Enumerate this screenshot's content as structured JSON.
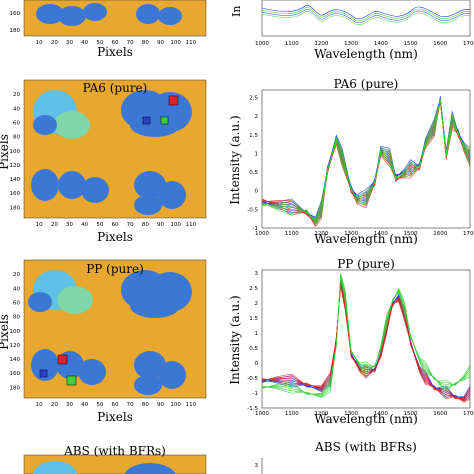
{
  "colors": {
    "map_background": "#e8a830",
    "map_blob": "#3b78d6",
    "map_blob_light": "#5fc0e8",
    "map_blob_green": "#7fd6a8",
    "marker_red": "#e0202a",
    "marker_blue": "#2a3fd0",
    "marker_green": "#40d040",
    "spectrum_red": "#e02020",
    "spectrum_blue": "#2030e0",
    "spectrum_green": "#30d030"
  },
  "map_axis": {
    "xlabel": "Pixels",
    "ylabel": "Pixels",
    "x_ticks": [
      "10",
      "20",
      "30",
      "40",
      "50",
      "60",
      "70",
      "80",
      "90",
      "100",
      "110"
    ],
    "y_ticks": [
      "20",
      "40",
      "60",
      "80",
      "100",
      "120",
      "140",
      "160",
      "180"
    ]
  },
  "spectrum_axis": {
    "xlabel": "Wavelength (nm)",
    "ylabel": "Intensity (a.u.)",
    "x_ticks": [
      "1000",
      "1100",
      "1200",
      "1300",
      "1400",
      "1500",
      "1600",
      "1700"
    ]
  },
  "panels": [
    {
      "id": "top",
      "map_title": "",
      "spectrum_title": "",
      "y_ticks_map": [
        "160",
        "180"
      ],
      "spectrum_y_ticks": [],
      "ylabel_partial": "In"
    },
    {
      "id": "pa6",
      "map_title": "PA6 (pure)",
      "spectrum_title": "PA6 (pure)",
      "spectrum_y_ticks": [
        "2.5",
        "2",
        "1.5",
        "1",
        "0.5",
        "0",
        "-0.5",
        "-1"
      ]
    },
    {
      "id": "pp",
      "map_title": "PP (pure)",
      "spectrum_title": "PP (pure)",
      "spectrum_y_ticks": [
        "3",
        "2.5",
        "2",
        "1.5",
        "1",
        "0.5",
        "0",
        "-0.5",
        "-1",
        "-1.5"
      ]
    },
    {
      "id": "abs",
      "map_title": "ABS (with BFRs)",
      "spectrum_title": "ABS (with BFRs)",
      "spectrum_y_ticks": [
        "3"
      ]
    }
  ],
  "chart_data": [
    {
      "type": "line",
      "title": "PA6 (pure)",
      "xlabel": "Wavelength (nm)",
      "ylabel": "Intensity (a.u.)",
      "xlim": [
        1000,
        1700
      ],
      "ylim": [
        -1,
        2.7
      ],
      "series": [
        {
          "color": "#2030e0",
          "x": [
            1000,
            1050,
            1100,
            1150,
            1180,
            1200,
            1220,
            1250,
            1270,
            1300,
            1320,
            1350,
            1380,
            1400,
            1430,
            1450,
            1480,
            1500,
            1530,
            1550,
            1580,
            1600,
            1620,
            1640,
            1660,
            1680,
            1700
          ],
          "values": [
            -0.3,
            -0.4,
            -0.45,
            -0.55,
            -0.8,
            -0.5,
            0.6,
            1.4,
            0.9,
            0.1,
            -0.2,
            -0.2,
            0.3,
            1.1,
            0.9,
            0.4,
            0.5,
            0.6,
            0.7,
            1.3,
            1.7,
            2.5,
            1.0,
            1.9,
            1.6,
            1.2,
            0.9
          ]
        },
        {
          "color": "#e02020",
          "x": [
            1000,
            1050,
            1100,
            1150,
            1180,
            1200,
            1220,
            1250,
            1270,
            1300,
            1320,
            1350,
            1380,
            1400,
            1430,
            1450,
            1480,
            1500,
            1530,
            1550,
            1580,
            1600,
            1620,
            1640,
            1660,
            1680,
            1700
          ],
          "values": [
            -0.25,
            -0.35,
            -0.5,
            -0.6,
            -0.9,
            -0.6,
            0.5,
            1.3,
            0.8,
            0.0,
            -0.3,
            -0.3,
            0.2,
            1.0,
            0.8,
            0.3,
            0.4,
            0.5,
            0.6,
            1.2,
            1.6,
            2.4,
            0.9,
            1.8,
            1.5,
            1.1,
            0.8
          ]
        },
        {
          "color": "#30d030",
          "x": [
            1000,
            1050,
            1100,
            1150,
            1180,
            1200,
            1220,
            1250,
            1270,
            1300,
            1320,
            1350,
            1380,
            1400,
            1430,
            1450,
            1480,
            1500,
            1530,
            1550,
            1580,
            1600,
            1620,
            1640,
            1660,
            1680,
            1700
          ],
          "values": [
            -0.35,
            -0.45,
            -0.5,
            -0.55,
            -0.85,
            -0.55,
            0.55,
            1.35,
            0.85,
            0.05,
            -0.25,
            -0.25,
            0.25,
            1.05,
            0.85,
            0.35,
            0.45,
            0.55,
            0.65,
            1.25,
            1.65,
            2.45,
            0.95,
            1.85,
            1.55,
            1.15,
            0.85
          ]
        }
      ]
    },
    {
      "type": "line",
      "title": "PP (pure)",
      "xlabel": "Wavelength (nm)",
      "ylabel": "Intensity (a.u.)",
      "xlim": [
        1000,
        1700
      ],
      "ylim": [
        -1.5,
        3.1
      ],
      "series": [
        {
          "color": "#2030e0",
          "x": [
            1000,
            1050,
            1100,
            1150,
            1200,
            1230,
            1250,
            1265,
            1280,
            1300,
            1330,
            1350,
            1380,
            1400,
            1420,
            1440,
            1460,
            1480,
            1500,
            1530,
            1550,
            1580,
            1600,
            1620,
            1650,
            1680,
            1700
          ],
          "values": [
            -0.6,
            -0.6,
            -0.65,
            -0.75,
            -0.9,
            -0.6,
            0.8,
            2.7,
            2.0,
            0.3,
            -0.2,
            -0.3,
            -0.2,
            0.3,
            1.2,
            2.0,
            2.2,
            1.6,
            0.7,
            -0.2,
            -0.5,
            -0.8,
            -0.9,
            -1.0,
            -1.1,
            -1.2,
            -1.0
          ]
        },
        {
          "color": "#e02020",
          "x": [
            1000,
            1050,
            1100,
            1150,
            1200,
            1230,
            1250,
            1265,
            1280,
            1300,
            1330,
            1350,
            1380,
            1400,
            1420,
            1440,
            1460,
            1480,
            1500,
            1530,
            1550,
            1580,
            1600,
            1620,
            1650,
            1680,
            1700
          ],
          "values": [
            -0.55,
            -0.55,
            -0.6,
            -0.7,
            -0.85,
            -0.55,
            0.85,
            2.6,
            1.9,
            0.25,
            -0.25,
            -0.35,
            -0.25,
            0.25,
            1.15,
            1.95,
            2.1,
            1.55,
            0.65,
            -0.25,
            -0.55,
            -0.85,
            -0.95,
            -1.05,
            -1.15,
            -1.25,
            -1.05
          ]
        },
        {
          "color": "#30d030",
          "x": [
            1000,
            1050,
            1100,
            1150,
            1200,
            1230,
            1250,
            1265,
            1280,
            1300,
            1330,
            1350,
            1380,
            1400,
            1420,
            1440,
            1460,
            1480,
            1500,
            1530,
            1550,
            1580,
            1600,
            1620,
            1650,
            1680,
            1700
          ],
          "values": [
            -0.8,
            -0.8,
            -0.85,
            -1.0,
            -1.1,
            -0.8,
            0.6,
            2.9,
            2.2,
            0.4,
            -0.1,
            -0.2,
            -0.1,
            0.5,
            1.4,
            2.1,
            2.4,
            1.8,
            0.9,
            0.1,
            -0.2,
            -0.5,
            -0.7,
            -0.8,
            -0.7,
            -0.5,
            -0.3
          ]
        }
      ]
    }
  ]
}
